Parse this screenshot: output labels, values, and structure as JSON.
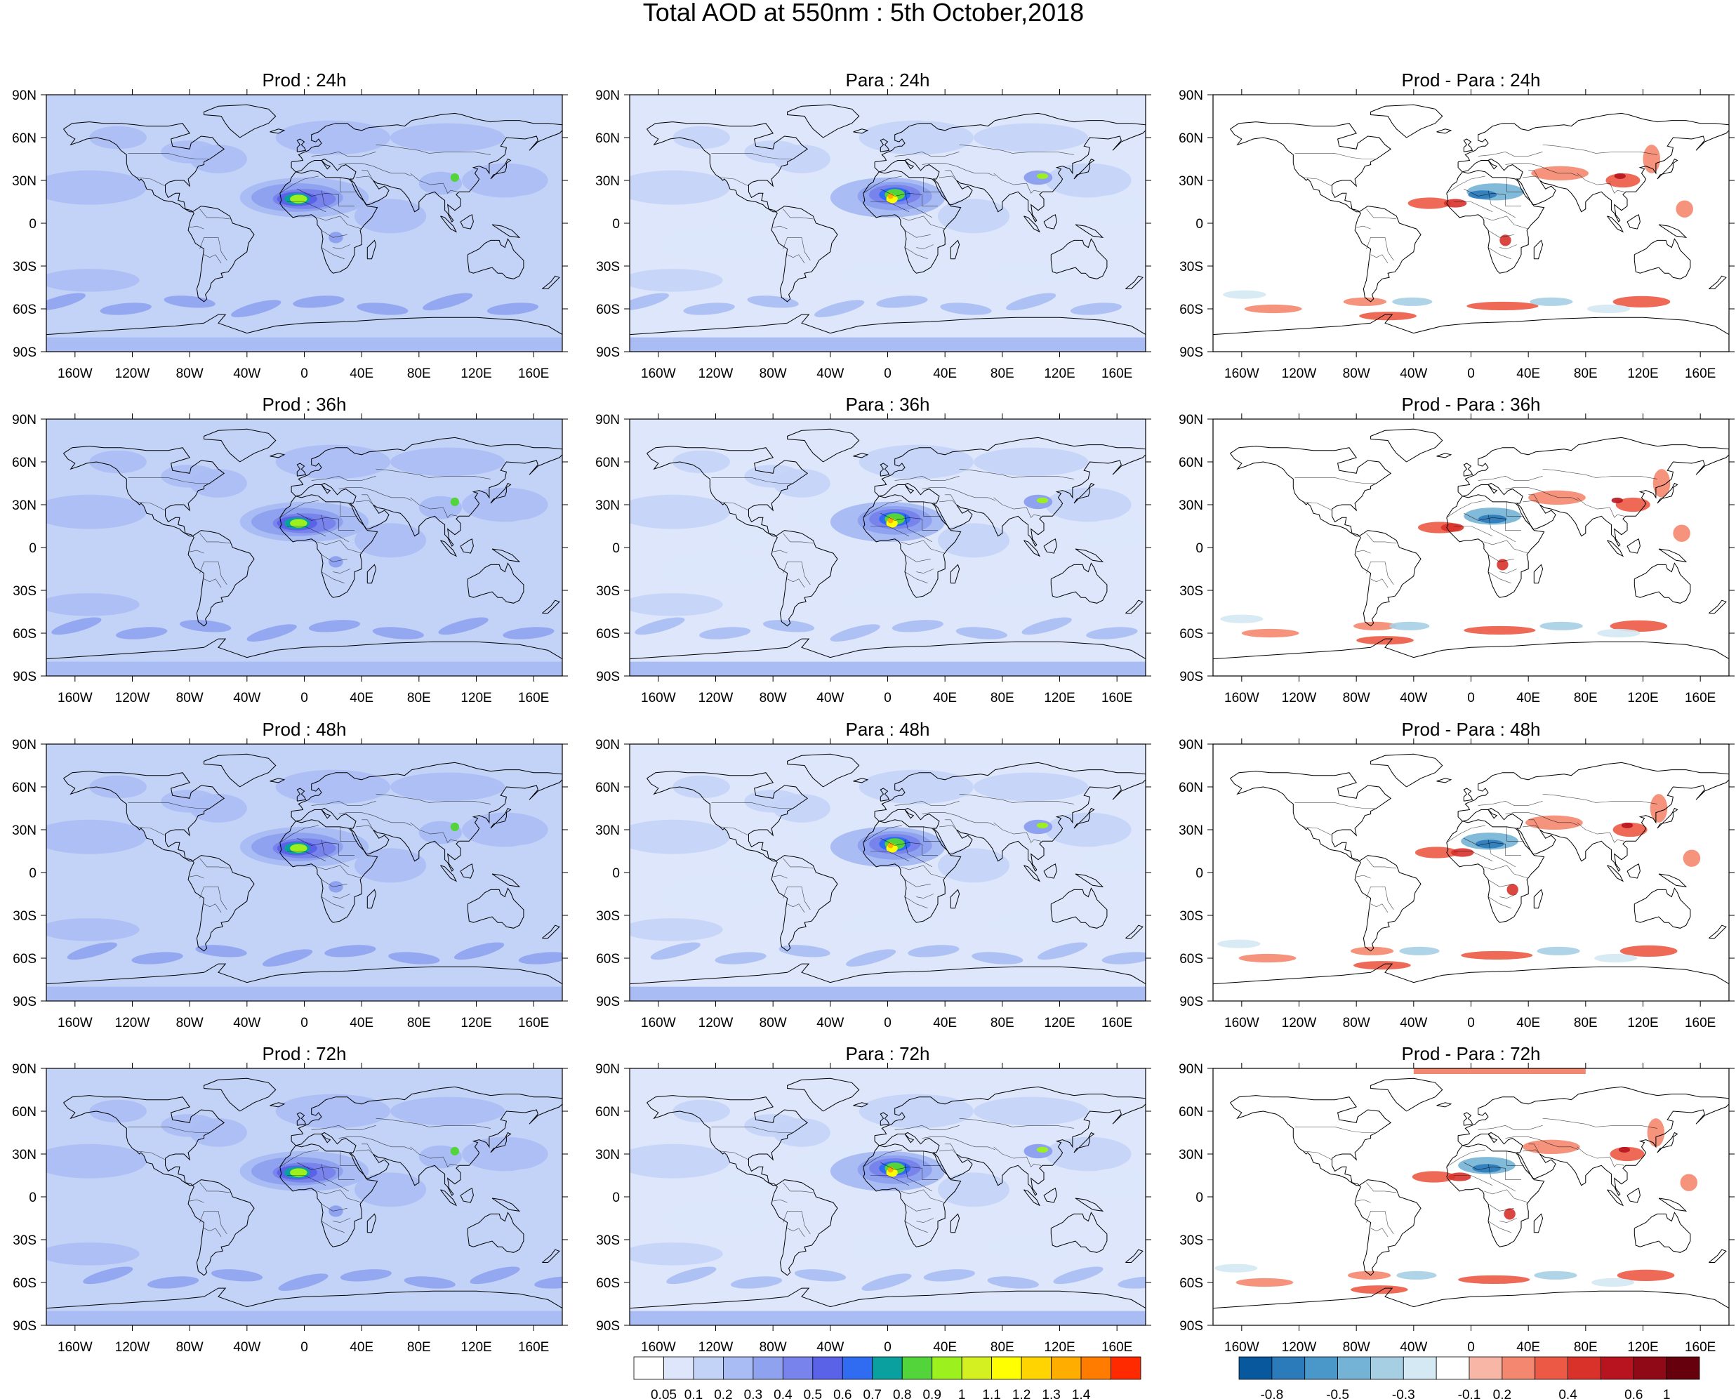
{
  "figure": {
    "title": "Total AOD at 550nm : 5th October,2018"
  },
  "axes": {
    "lat_labels": [
      "90N",
      "60N",
      "30N",
      "0",
      "30S",
      "60S",
      "90S"
    ],
    "lon_labels": [
      "160W",
      "120W",
      "80W",
      "40W",
      "0",
      "40E",
      "80E",
      "120E",
      "160E"
    ]
  },
  "panels": [
    {
      "title": "Prod : 24h",
      "kind": "prod"
    },
    {
      "title": "Para : 24h",
      "kind": "para"
    },
    {
      "title": "Prod - Para : 24h",
      "kind": "diff"
    },
    {
      "title": "Prod : 36h",
      "kind": "prod"
    },
    {
      "title": "Para : 36h",
      "kind": "para"
    },
    {
      "title": "Prod - Para : 36h",
      "kind": "diff"
    },
    {
      "title": "Prod : 48h",
      "kind": "prod"
    },
    {
      "title": "Para : 48h",
      "kind": "para"
    },
    {
      "title": "Prod - Para : 48h",
      "kind": "diff"
    },
    {
      "title": "Prod : 72h",
      "kind": "prod"
    },
    {
      "title": "Para : 72h",
      "kind": "para"
    },
    {
      "title": "Prod - Para : 72h",
      "kind": "diff"
    }
  ],
  "aod_colorbar": {
    "labels": [
      "0.05",
      "0.1",
      "0.2",
      "0.3",
      "0.4",
      "0.5",
      "0.6",
      "0.7",
      "0.8",
      "0.9",
      "1",
      "1.1",
      "1.2",
      "1.3",
      "1.4"
    ],
    "colors": [
      "#ffffff",
      "#dde6fb",
      "#c3d2f7",
      "#a9bcf3",
      "#8fa2ef",
      "#7884ec",
      "#5a62e8",
      "#2f6cf2",
      "#0aa0a0",
      "#52d43a",
      "#9cf01e",
      "#d4f020",
      "#ffff00",
      "#ffd400",
      "#ffae00",
      "#ff7c00",
      "#ff2a00"
    ]
  },
  "diff_colorbar": {
    "labels": [
      "-0.8",
      "-0.5",
      "-0.3",
      "-0.1",
      "0.2",
      "0.4",
      "0.6",
      "1"
    ],
    "colors": [
      "#08589e",
      "#2b7bba",
      "#4a98c9",
      "#74b3d5",
      "#a6cfe4",
      "#d4e9f4",
      "#ffffff",
      "#f8b6a6",
      "#f4876f",
      "#ec5a45",
      "#d8322b",
      "#b8141f",
      "#8f0a16",
      "#67000d"
    ]
  },
  "colors": {
    "map_background": "#ffffff",
    "coastline": "#000000"
  }
}
